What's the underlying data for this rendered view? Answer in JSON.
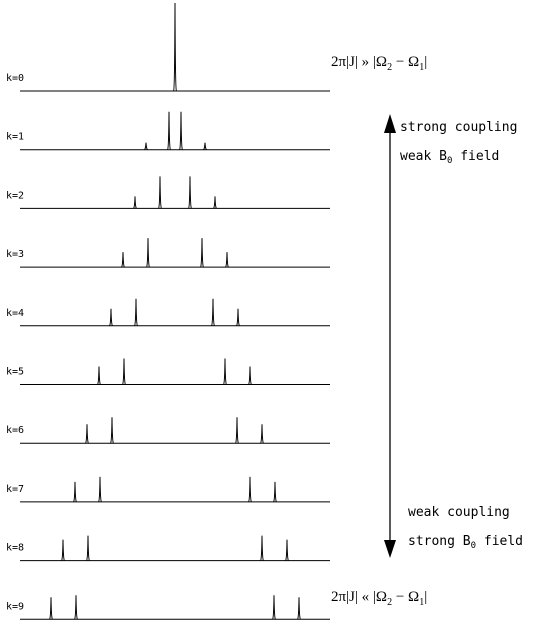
{
  "labels": {
    "top_condition": {
      "prefix": "2π|J| » |Ω",
      "sub1": "2",
      "mid": " − Ω",
      "sub2": "1",
      "suffix": "|"
    },
    "bottom_condition": {
      "prefix": "2π|J| « |Ω",
      "sub1": "2",
      "mid": " − Ω",
      "sub2": "1",
      "suffix": "|"
    },
    "strong_coupling": "strong coupling",
    "weak_field": {
      "prefix": "weak B",
      "sub": "0",
      "suffix": " field"
    },
    "weak_coupling": "weak coupling",
    "strong_field": {
      "prefix": "strong B",
      "sub": "0",
      "suffix": " field"
    }
  },
  "chart_data": {
    "type": "spectra-stack",
    "spectra": [
      {
        "label": "k=0",
        "peaks": [
          {
            "x": 175,
            "h": 88
          }
        ]
      },
      {
        "label": "k=1",
        "peaks": [
          {
            "x": 146,
            "h": 7
          },
          {
            "x": 169,
            "h": 38
          },
          {
            "x": 181,
            "h": 38
          },
          {
            "x": 205,
            "h": 7
          }
        ]
      },
      {
        "label": "k=2",
        "peaks": [
          {
            "x": 135,
            "h": 12
          },
          {
            "x": 160,
            "h": 32
          },
          {
            "x": 190,
            "h": 32
          },
          {
            "x": 215,
            "h": 12
          }
        ]
      },
      {
        "label": "k=3",
        "peaks": [
          {
            "x": 123,
            "h": 15
          },
          {
            "x": 148,
            "h": 29
          },
          {
            "x": 202,
            "h": 29
          },
          {
            "x": 227,
            "h": 15
          }
        ]
      },
      {
        "label": "k=4",
        "peaks": [
          {
            "x": 111,
            "h": 17
          },
          {
            "x": 136,
            "h": 27
          },
          {
            "x": 213,
            "h": 27
          },
          {
            "x": 238,
            "h": 17
          }
        ]
      },
      {
        "label": "k=5",
        "peaks": [
          {
            "x": 99,
            "h": 18
          },
          {
            "x": 124,
            "h": 26
          },
          {
            "x": 225,
            "h": 26
          },
          {
            "x": 250,
            "h": 18
          }
        ]
      },
      {
        "label": "k=6",
        "peaks": [
          {
            "x": 87,
            "h": 19
          },
          {
            "x": 112,
            "h": 26
          },
          {
            "x": 237,
            "h": 26
          },
          {
            "x": 262,
            "h": 19
          }
        ]
      },
      {
        "label": "k=7",
        "peaks": [
          {
            "x": 75,
            "h": 20
          },
          {
            "x": 100,
            "h": 25
          },
          {
            "x": 250,
            "h": 25
          },
          {
            "x": 275,
            "h": 20
          }
        ]
      },
      {
        "label": "k=8",
        "peaks": [
          {
            "x": 63,
            "h": 21
          },
          {
            "x": 88,
            "h": 25
          },
          {
            "x": 262,
            "h": 25
          },
          {
            "x": 287,
            "h": 21
          }
        ]
      },
      {
        "label": "k=9",
        "peaks": [
          {
            "x": 51,
            "h": 22
          },
          {
            "x": 76,
            "h": 24
          },
          {
            "x": 274,
            "h": 24
          },
          {
            "x": 299,
            "h": 22
          }
        ]
      }
    ]
  }
}
